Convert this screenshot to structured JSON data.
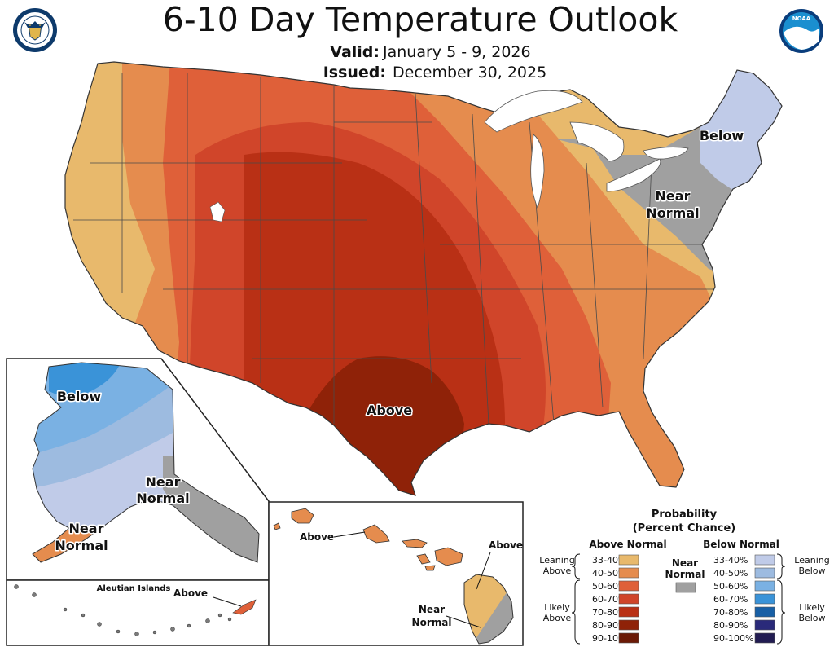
{
  "header": {
    "title": "6-10 Day Temperature Outlook",
    "valid_label": "Valid:",
    "valid_value": "January 5 - 9, 2026",
    "issued_label": "Issued:",
    "issued_value": "December 30, 2025"
  },
  "logos": {
    "left": {
      "name": "department-of-commerce-seal",
      "text": "DEPARTMENT OF COMMERCE · UNITED STATES OF AMERICA"
    },
    "right": {
      "name": "noaa-logo",
      "text": "NOAA"
    }
  },
  "map_labels": {
    "conus_above": "Above",
    "conus_below": "Below",
    "conus_near_1": "Near",
    "conus_near_2": "Normal",
    "alaska_below": "Below",
    "alaska_near_a1": "Near",
    "alaska_near_a2": "Normal",
    "alaska_near_b1": "Near",
    "alaska_near_b2": "Normal",
    "aleutian_title": "Aleutian Islands",
    "aleutian_above": "Above",
    "hawaii_above_1": "Above",
    "hawaii_above_2": "Above",
    "hawaii_near_1": "Near",
    "hawaii_near_2": "Normal"
  },
  "legend": {
    "title_1": "Probability",
    "title_2": "(Percent Chance)",
    "above_header": "Above Normal",
    "below_header": "Below Normal",
    "near_label_1": "Near",
    "near_label_2": "Normal",
    "near_color": "#a0a0a0",
    "leaning_above_1": "Leaning",
    "leaning_above_2": "Above",
    "likely_above_1": "Likely",
    "likely_above_2": "Above",
    "leaning_below_1": "Leaning",
    "leaning_below_2": "Below",
    "likely_below_1": "Likely",
    "likely_below_2": "Below",
    "above": [
      {
        "range": "33-40%",
        "color": "#e8b96c"
      },
      {
        "range": "40-50%",
        "color": "#e58c4e"
      },
      {
        "range": "50-60%",
        "color": "#df6039"
      },
      {
        "range": "60-70%",
        "color": "#d0452a"
      },
      {
        "range": "70-80%",
        "color": "#b93015"
      },
      {
        "range": "80-90%",
        "color": "#8f2208"
      },
      {
        "range": "90-100%",
        "color": "#6b1a06"
      }
    ],
    "below": [
      {
        "range": "33-40%",
        "color": "#c0cbe8"
      },
      {
        "range": "40-50%",
        "color": "#9dbbe0"
      },
      {
        "range": "50-60%",
        "color": "#7ab1e3"
      },
      {
        "range": "60-70%",
        "color": "#3a93d8"
      },
      {
        "range": "70-80%",
        "color": "#185fa5"
      },
      {
        "range": "80-90%",
        "color": "#2a2a7a"
      },
      {
        "range": "90-100%",
        "color": "#221c52"
      }
    ]
  }
}
